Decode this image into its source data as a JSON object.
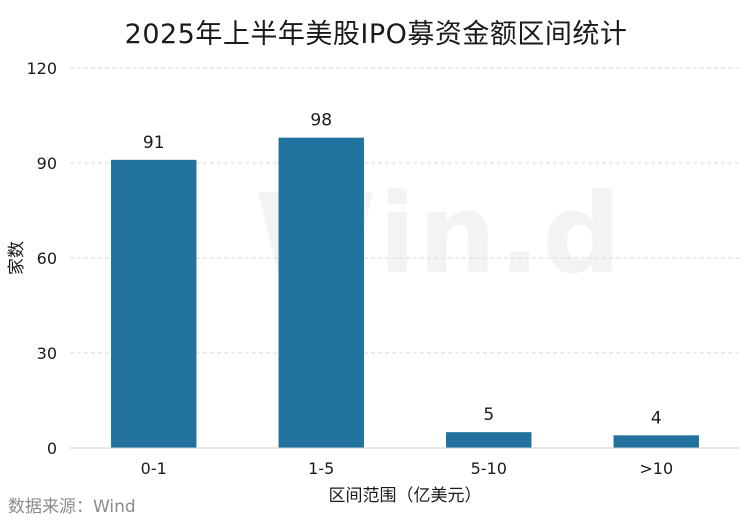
{
  "chart_data": {
    "type": "bar",
    "title": "2025年上半年美股IPO募资金额区间统计",
    "xlabel": "区间范围（亿美元）",
    "ylabel": "家数",
    "categories": [
      "0-1",
      "1-5",
      "5-10",
      ">10"
    ],
    "values": [
      91,
      98,
      5,
      4
    ],
    "ylim": [
      0,
      120
    ],
    "yticks": [
      0,
      30,
      60,
      90,
      120
    ],
    "grid": true,
    "legend": "none",
    "bar_color": "#2272a0"
  },
  "source": "数据来源：Wind",
  "watermark": "Win.d"
}
